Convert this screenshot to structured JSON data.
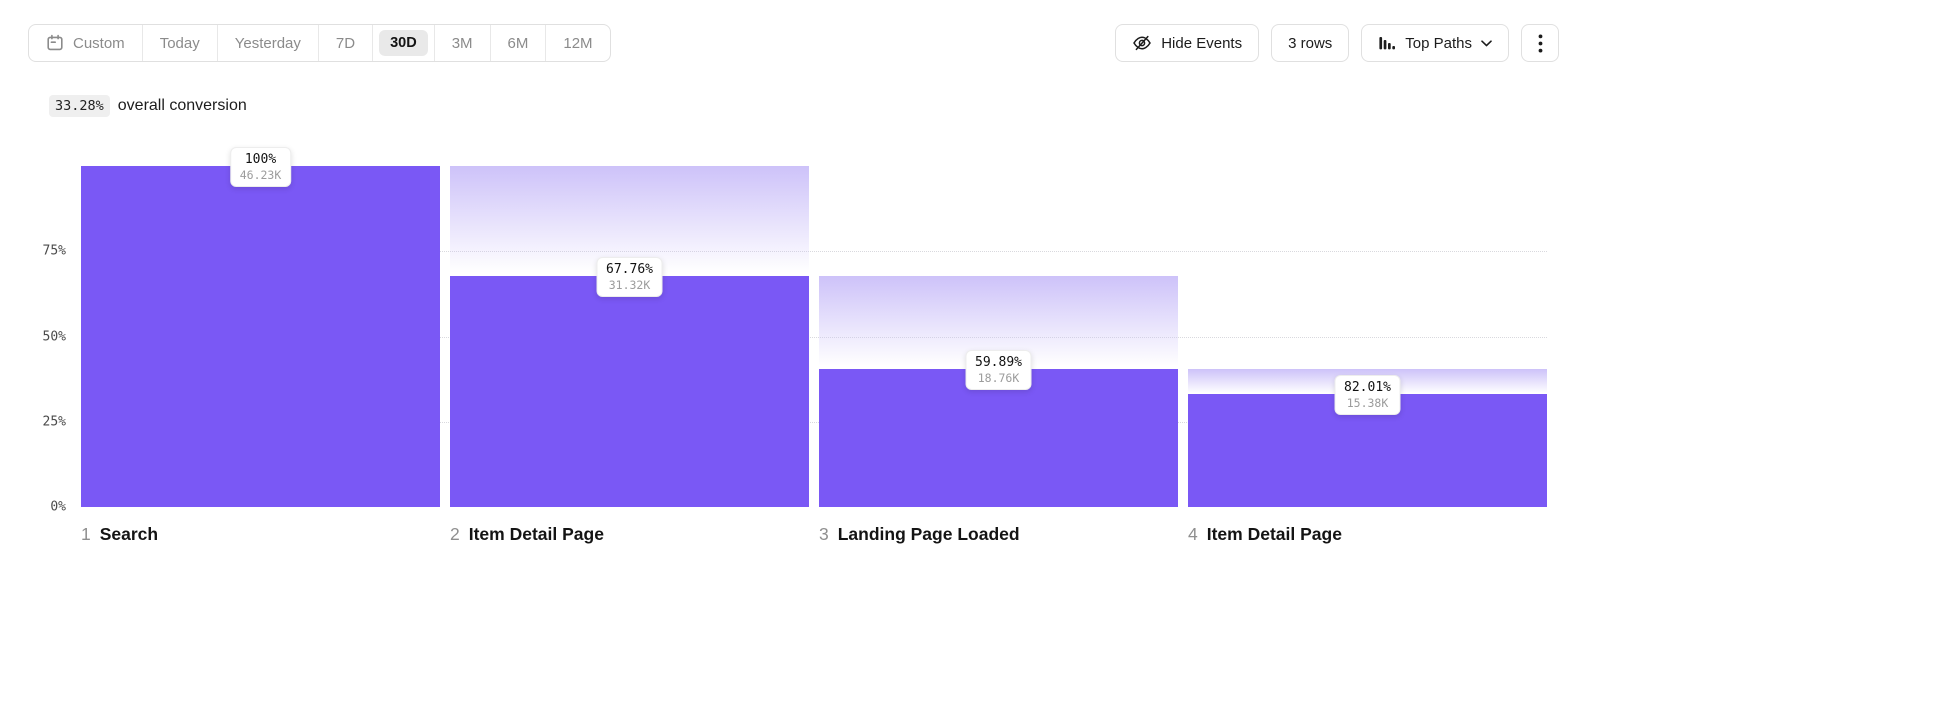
{
  "toolbar": {
    "date_ranges": [
      {
        "label": "Custom",
        "selected": false
      },
      {
        "label": "Today",
        "selected": false
      },
      {
        "label": "Yesterday",
        "selected": false
      },
      {
        "label": "7D",
        "selected": false
      },
      {
        "label": "30D",
        "selected": true
      },
      {
        "label": "3M",
        "selected": false
      },
      {
        "label": "6M",
        "selected": false
      },
      {
        "label": "12M",
        "selected": false
      }
    ],
    "hide_events_label": "Hide Events",
    "rows_label": "3 rows",
    "top_paths_label": "Top Paths"
  },
  "summary": {
    "overall_conversion_value": "33.28%",
    "overall_conversion_text": "overall conversion"
  },
  "chart_data": {
    "type": "bar",
    "subtype": "funnel",
    "title": "33.28% overall conversion",
    "ylim": [
      0,
      100
    ],
    "y_ticks": [
      {
        "label": "75%",
        "value": 75
      },
      {
        "label": "50%",
        "value": 50
      },
      {
        "label": "25%",
        "value": 25
      },
      {
        "label": "0%",
        "value": 0
      }
    ],
    "gridlines": [
      75,
      50,
      25
    ],
    "steps": [
      {
        "index": "1",
        "name": "Search",
        "conversion_pct": "100%",
        "count": "46.23K",
        "bar_height_pct": 100
      },
      {
        "index": "2",
        "name": "Item Detail Page",
        "conversion_pct": "67.76%",
        "count": "31.32K",
        "bar_height_pct": 67.75
      },
      {
        "index": "3",
        "name": "Landing Page Loaded",
        "conversion_pct": "59.89%",
        "count": "18.76K",
        "bar_height_pct": 40.58
      },
      {
        "index": "4",
        "name": "Item Detail Page",
        "conversion_pct": "82.01%",
        "count": "15.38K",
        "bar_height_pct": 33.27
      }
    ],
    "colors": {
      "bar": "#7a58f5",
      "ghost_top": "#cdc2f9",
      "gridline": "#d9d9de"
    }
  }
}
